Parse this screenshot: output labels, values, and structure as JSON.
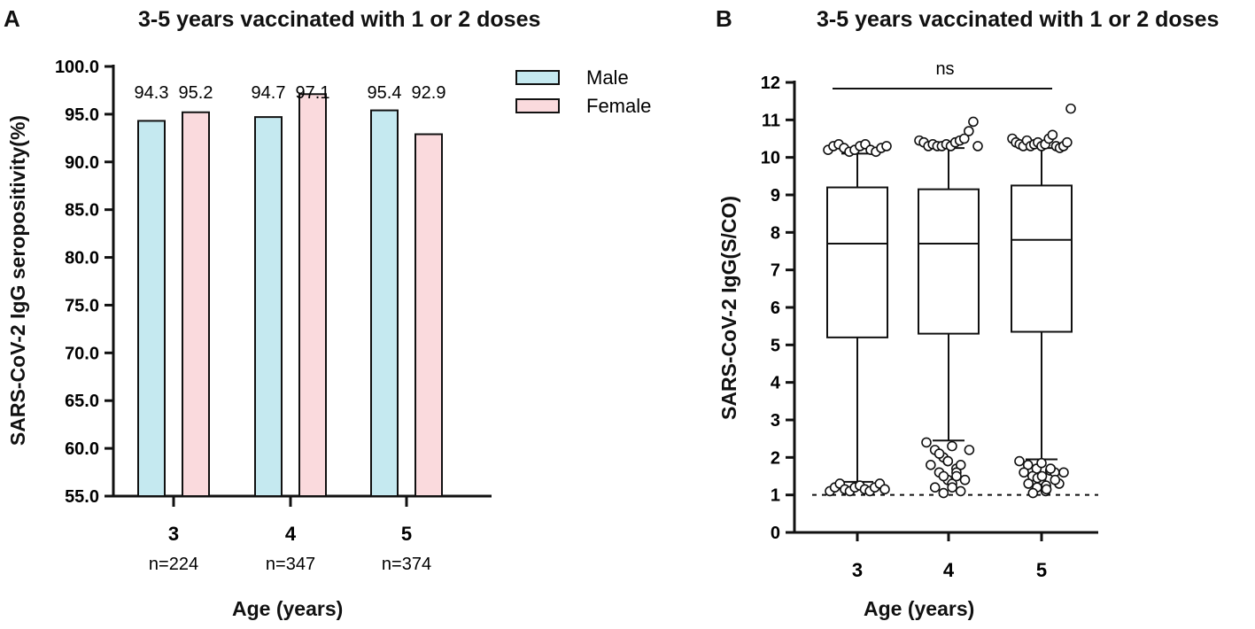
{
  "panels": {
    "a": {
      "letter": "A"
    },
    "b": {
      "letter": "B"
    }
  },
  "chart_data": [
    {
      "type": "bar",
      "title": "3-5 years vaccinated with 1 or 2 doses",
      "xlabel": "Age (years)",
      "ylabel": "SARS-CoV-2 IgG seropositivity(%)",
      "ylim": [
        55.0,
        100.0
      ],
      "yticks": [
        "55.0",
        "60.0",
        "65.0",
        "70.0",
        "75.0",
        "80.0",
        "85.0",
        "90.0",
        "95.0",
        "100.0"
      ],
      "categories": [
        "3",
        "4",
        "5"
      ],
      "n_labels": [
        "n=224",
        "n=347",
        "n=374"
      ],
      "series": [
        {
          "name": "Male",
          "color": "#c5e9f0",
          "values": [
            94.3,
            94.7,
            95.4
          ]
        },
        {
          "name": "Female",
          "color": "#fadadd",
          "values": [
            95.2,
            97.1,
            92.9
          ]
        }
      ],
      "legend_position": "top-right"
    },
    {
      "type": "box",
      "title": "3-5 years vaccinated with 1 or 2 doses",
      "xlabel": "Age (years)",
      "ylabel": "SARS-CoV-2 IgG(S/CO)",
      "ylim": [
        0,
        12
      ],
      "yticks": [
        "0",
        "1",
        "2",
        "3",
        "4",
        "5",
        "6",
        "7",
        "8",
        "9",
        "10",
        "11",
        "12"
      ],
      "categories": [
        "3",
        "4",
        "5"
      ],
      "annotation": "ns",
      "reference_line": 1.0,
      "boxes": [
        {
          "category": "3",
          "whisker_low": 1.35,
          "q1": 5.2,
          "median": 7.7,
          "q3": 9.2,
          "whisker_high": 10.1,
          "outliers_high": [
            10.2,
            10.3,
            10.35,
            10.25,
            10.15,
            10.2,
            10.3,
            10.35,
            10.2,
            10.15,
            10.25,
            10.3
          ],
          "outliers_low": [
            1.1,
            1.2,
            1.3,
            1.15,
            1.1,
            1.2,
            1.25,
            1.15,
            1.1,
            1.2,
            1.3,
            1.15
          ]
        },
        {
          "category": "4",
          "whisker_low": 2.45,
          "q1": 5.3,
          "median": 7.7,
          "q3": 9.15,
          "whisker_high": 10.25,
          "outliers_high": [
            10.45,
            10.4,
            10.3,
            10.35,
            10.3,
            10.3,
            10.35,
            10.3,
            10.4,
            10.45,
            10.5,
            10.7,
            10.95,
            10.3
          ],
          "outliers_low": [
            2.4,
            2.2,
            2.0,
            1.8,
            1.6,
            1.4,
            1.2,
            1.05,
            2.3,
            2.1,
            1.9,
            1.7,
            1.5,
            1.3,
            1.1,
            1.9,
            1.6,
            1.4,
            1.2,
            1.8,
            2.2,
            1.5
          ]
        },
        {
          "category": "5",
          "whisker_low": 1.95,
          "q1": 5.35,
          "median": 7.8,
          "q3": 9.25,
          "whisker_high": 10.25,
          "outliers_high": [
            10.5,
            10.4,
            10.35,
            10.3,
            10.45,
            10.3,
            10.35,
            10.4,
            10.3,
            10.35,
            10.5,
            10.6,
            10.3,
            10.25,
            10.3,
            10.4,
            11.3
          ],
          "outliers_low": [
            1.9,
            1.8,
            1.7,
            1.6,
            1.5,
            1.4,
            1.3,
            1.2,
            1.1,
            1.05,
            1.85,
            1.65,
            1.45,
            1.25,
            1.6,
            1.5,
            1.7,
            1.3,
            1.15,
            1.4,
            1.6
          ]
        }
      ]
    }
  ]
}
